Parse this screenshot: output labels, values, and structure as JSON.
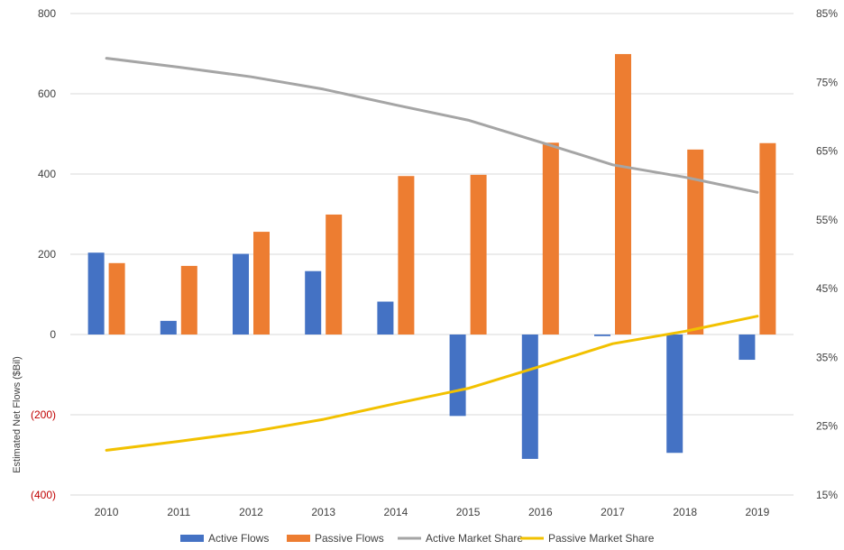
{
  "chart_data": {
    "type": "bar",
    "title": "",
    "xlabel": "",
    "ylabel": "Estimated Net Flows ($Bil)",
    "categories": [
      "2010",
      "2011",
      "2012",
      "2013",
      "2014",
      "2015",
      "2016",
      "2017",
      "2018",
      "2019"
    ],
    "ylim": [
      -400,
      800
    ],
    "yticks": [
      -400,
      -200,
      0,
      200,
      400,
      600,
      800
    ],
    "ytick_labels": [
      "(400)",
      "(200)",
      "0",
      "200",
      "400",
      "600",
      "800"
    ],
    "y2lim": [
      15,
      85
    ],
    "y2ticks": [
      15,
      25,
      35,
      45,
      55,
      65,
      75,
      85
    ],
    "y2tick_labels": [
      "15%",
      "25%",
      "35%",
      "45%",
      "55%",
      "65%",
      "75%",
      "85%"
    ],
    "grid": true,
    "legend": "bottom",
    "series": [
      {
        "name": "Active Flows",
        "type": "bar",
        "axis": "left",
        "color": "#4472c4",
        "values": [
          204,
          34,
          201,
          158,
          82,
          -203,
          -310,
          -4,
          -295,
          -63
        ]
      },
      {
        "name": "Passive Flows",
        "type": "bar",
        "axis": "left",
        "color": "#ed7d31",
        "values": [
          178,
          171,
          256,
          299,
          395,
          398,
          478,
          699,
          461,
          477
        ]
      },
      {
        "name": "Active Market Share",
        "type": "line",
        "axis": "right",
        "color": "#a5a5a5",
        "values": [
          78.5,
          77.2,
          75.8,
          74.0,
          71.7,
          69.5,
          66.3,
          63.0,
          61.2,
          59.0
        ]
      },
      {
        "name": "Passive Market Share",
        "type": "line",
        "axis": "right",
        "color": "#f2c100",
        "values": [
          21.5,
          22.8,
          24.2,
          26.0,
          28.3,
          30.5,
          33.7,
          37.0,
          38.8,
          41.0
        ]
      }
    ]
  }
}
